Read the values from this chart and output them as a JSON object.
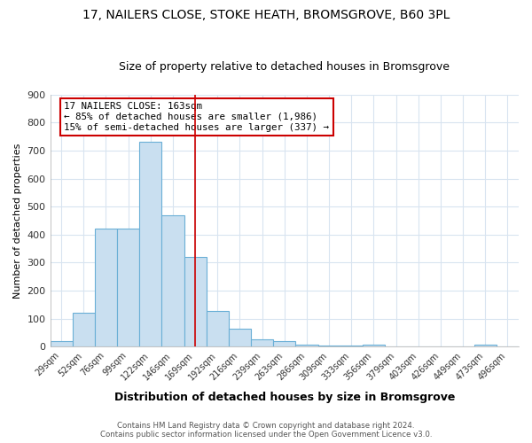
{
  "title_line1": "17, NAILERS CLOSE, STOKE HEATH, BROMSGROVE, B60 3PL",
  "title_line2": "Size of property relative to detached houses in Bromsgrove",
  "xlabel": "Distribution of detached houses by size in Bromsgrove",
  "ylabel": "Number of detached properties",
  "bin_labels": [
    "29sqm",
    "52sqm",
    "76sqm",
    "99sqm",
    "122sqm",
    "146sqm",
    "169sqm",
    "192sqm",
    "216sqm",
    "239sqm",
    "263sqm",
    "286sqm",
    "309sqm",
    "333sqm",
    "356sqm",
    "379sqm",
    "403sqm",
    "426sqm",
    "449sqm",
    "473sqm",
    "496sqm"
  ],
  "bar_values": [
    18,
    122,
    420,
    420,
    730,
    470,
    320,
    128,
    65,
    25,
    20,
    8,
    5,
    5,
    8,
    0,
    0,
    0,
    0,
    8,
    0
  ],
  "bar_color": "#c9dff0",
  "bar_edge_color": "#6aafd6",
  "vline_color": "#cc0000",
  "vline_x_idx": 6,
  "annotation_line1": "17 NAILERS CLOSE: 163sqm",
  "annotation_line2": "← 85% of detached houses are smaller (1,986)",
  "annotation_line3": "15% of semi-detached houses are larger (337) →",
  "annotation_box_color": "#ffffff",
  "annotation_box_edge_color": "#cc0000",
  "footnote_line1": "Contains HM Land Registry data © Crown copyright and database right 2024.",
  "footnote_line2": "Contains public sector information licensed under the Open Government Licence v3.0.",
  "ylim": [
    0,
    900
  ],
  "yticks": [
    0,
    100,
    200,
    300,
    400,
    500,
    600,
    700,
    800,
    900
  ],
  "bg_color": "#ffffff",
  "grid_color": "#d8e4f0",
  "title_fontsize": 10,
  "subtitle_fontsize": 9
}
